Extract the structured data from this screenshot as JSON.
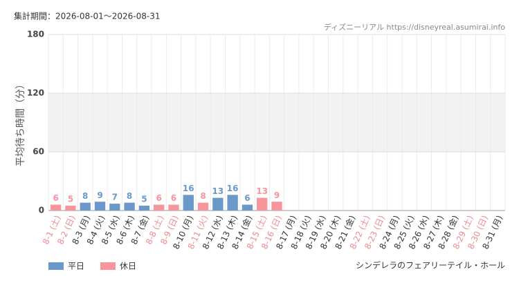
{
  "chart_data": {
    "type": "bar",
    "period": "集計期間：2026-08-01～2026-08-31",
    "source": "ディズニーリアル https://disneyreal.asumirai.info",
    "attraction": "シンデレラのフェアリーテイル・ホール",
    "y_label": "平均待ち時間（分）",
    "categories": [
      "8-1 (土)",
      "8-2 (日)",
      "8-3 (月)",
      "8-4 (火)",
      "8-5 (水)",
      "8-6 (木)",
      "8-7 (金)",
      "8-8 (土)",
      "8-9 (日)",
      "8-10 (月)",
      "8-11 (火)",
      "8-12 (水)",
      "8-13 (木)",
      "8-14 (金)",
      "8-15 (土)",
      "8-16 (日)",
      "8-17 (月)",
      "8-18 (火)",
      "8-19 (水)",
      "8-20 (木)",
      "8-21 (金)",
      "8-22 (土)",
      "8-23 (日)",
      "8-24 (月)",
      "8-25 (火)",
      "8-26 (水)",
      "8-27 (木)",
      "8-28 (金)",
      "8-29 (土)",
      "8-30 (日)",
      "8-31 (月)"
    ],
    "category_colors": [
      "#f08a93",
      "#f08a93",
      "#333333",
      "#333333",
      "#333333",
      "#333333",
      "#333333",
      "#f08a93",
      "#f08a93",
      "#333333",
      "#f08a93",
      "#333333",
      "#333333",
      "#333333",
      "#f08a93",
      "#f08a93",
      "#333333",
      "#333333",
      "#333333",
      "#333333",
      "#333333",
      "#f08a93",
      "#f08a93",
      "#333333",
      "#333333",
      "#333333",
      "#333333",
      "#333333",
      "#f08a93",
      "#f08a93",
      "#333333"
    ],
    "series": [
      {
        "name": "平日",
        "color": "#6a98c8",
        "values": [
          null,
          null,
          8,
          9,
          7,
          8,
          5,
          null,
          null,
          16,
          null,
          13,
          16,
          6,
          null,
          null,
          null,
          null,
          null,
          null,
          null,
          null,
          null,
          null,
          null,
          null,
          null,
          null,
          null,
          null,
          null
        ]
      },
      {
        "name": "休日",
        "color": "#f6959c",
        "values": [
          6,
          5,
          null,
          null,
          null,
          null,
          null,
          6,
          6,
          null,
          8,
          null,
          null,
          null,
          13,
          9,
          null,
          null,
          null,
          null,
          null,
          null,
          null,
          null,
          null,
          null,
          null,
          null,
          null,
          null,
          null
        ]
      }
    ],
    "ylim": [
      0,
      180
    ],
    "yticks": [
      0,
      60,
      120,
      180
    ],
    "grid": true
  }
}
